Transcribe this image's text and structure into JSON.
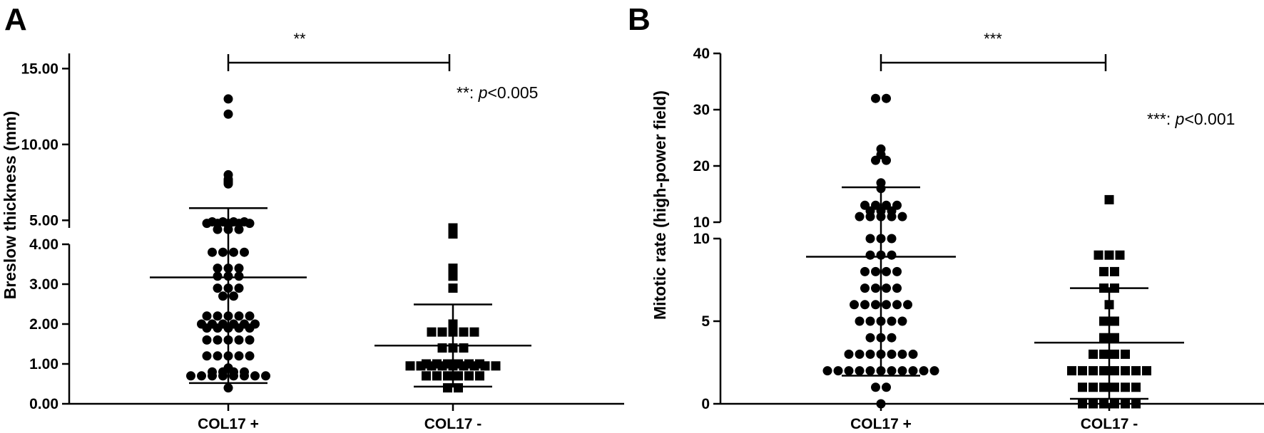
{
  "figure": {
    "panels": [
      {
        "letter": "A",
        "ylabel": "Breslow thickness (mm)",
        "significance": "**",
        "pnote_stars": "**: ",
        "pnote_p": "p",
        "pnote_rest": "<0.005",
        "ytick_labels_lower": [
          "0.00",
          "1.00",
          "2.00",
          "3.00",
          "4.00"
        ],
        "ytick_labels_upper": [
          "5.00",
          "10.00",
          "15.00"
        ]
      },
      {
        "letter": "B",
        "ylabel": "Mitotic rate (high-power field)",
        "significance": "***",
        "pnote_stars": "***: ",
        "pnote_p": "p",
        "pnote_rest": "<0.001",
        "ytick_labels_lower": [
          "0",
          "5",
          "10"
        ],
        "ytick_labels_upper": [
          "10",
          "20",
          "30",
          "40"
        ]
      }
    ]
  },
  "chart_data": [
    {
      "type": "scatter",
      "panel": "A",
      "categories": [
        "COL17 +",
        "COL17 -"
      ],
      "ylabel": "Breslow thickness (mm)",
      "y_axis_break": true,
      "ylim_lower": [
        0,
        4
      ],
      "ylim_upper": [
        4.5,
        16
      ],
      "series": [
        {
          "category": "COL17 +",
          "marker": "circle",
          "mean": 3.17,
          "sd_low": 0.52,
          "sd_high": 5.8,
          "values": [
            13.0,
            12.0,
            8.0,
            7.7,
            7.6,
            7.5,
            7.4,
            4.9,
            4.8,
            4.8,
            4.7,
            4.9,
            4.8,
            4.9,
            4.8,
            4.9,
            4.8,
            4.4,
            4.4,
            4.4,
            3.8,
            3.8,
            3.8,
            3.8,
            3.4,
            3.4,
            3.4,
            3.2,
            3.2,
            3.2,
            2.9,
            2.9,
            2.9,
            2.7,
            2.7,
            2.2,
            2.2,
            2.2,
            2.2,
            2.2,
            2.0,
            2.0,
            2.0,
            2.0,
            2.0,
            2.0,
            1.9,
            1.9,
            1.9,
            1.9,
            1.9,
            1.6,
            1.6,
            1.6,
            1.6,
            1.6,
            1.2,
            1.2,
            1.2,
            1.2,
            1.2,
            0.9,
            0.8,
            0.8,
            0.8,
            0.7,
            0.7,
            0.7,
            0.7,
            0.7,
            0.7,
            0.7,
            0.7,
            0.8,
            0.4
          ]
        },
        {
          "category": "COL17 -",
          "marker": "square",
          "mean": 1.46,
          "sd_low": 0.43,
          "sd_high": 2.49,
          "values": [
            4.5,
            4.1,
            3.4,
            3.2,
            2.9,
            2.0,
            1.8,
            1.8,
            1.8,
            1.8,
            1.8,
            1.4,
            1.4,
            1.4,
            1.0,
            1.0,
            1.0,
            1.0,
            1.0,
            1.0,
            0.95,
            0.95,
            0.95,
            0.95,
            0.95,
            0.95,
            0.95,
            0.95,
            0.95,
            0.7,
            0.7,
            0.7,
            0.7,
            0.7,
            0.7,
            0.4,
            0.4
          ]
        }
      ]
    },
    {
      "type": "scatter",
      "panel": "B",
      "categories": [
        "COL17 +",
        "COL17 -"
      ],
      "ylabel": "Mitotic rate (high-power field)",
      "y_axis_break": true,
      "ylim_lower": [
        0,
        10
      ],
      "ylim_upper": [
        10,
        40
      ],
      "series": [
        {
          "category": "COL17 +",
          "marker": "circle",
          "mean": 8.9,
          "sd_low": 1.7,
          "sd_high": 16.2,
          "values": [
            32,
            32,
            23,
            22,
            21,
            21,
            17,
            16,
            13,
            13,
            13,
            13,
            12,
            12,
            12,
            11,
            11,
            11,
            11,
            11,
            10,
            10,
            10,
            9,
            9,
            9,
            8,
            8,
            8,
            8,
            7,
            7,
            7,
            7,
            6,
            6,
            6,
            6,
            6,
            6,
            5,
            5,
            5,
            5,
            5,
            4,
            4,
            4,
            3,
            3,
            3,
            3,
            3,
            3,
            3,
            2,
            2,
            2,
            2,
            2,
            2,
            2,
            2,
            2,
            2,
            2,
            1,
            1,
            0
          ]
        },
        {
          "category": "COL17 -",
          "marker": "square",
          "mean": 3.7,
          "sd_low": 0.3,
          "sd_high": 7.0,
          "values": [
            14,
            9,
            9,
            9,
            8,
            8,
            7,
            7,
            6,
            5,
            5,
            4,
            4,
            3,
            3,
            3,
            3,
            2,
            2,
            2,
            2,
            2,
            2,
            2,
            2,
            1,
            1,
            1,
            1,
            1,
            1,
            0,
            0,
            0,
            0,
            0,
            0
          ]
        }
      ]
    }
  ]
}
